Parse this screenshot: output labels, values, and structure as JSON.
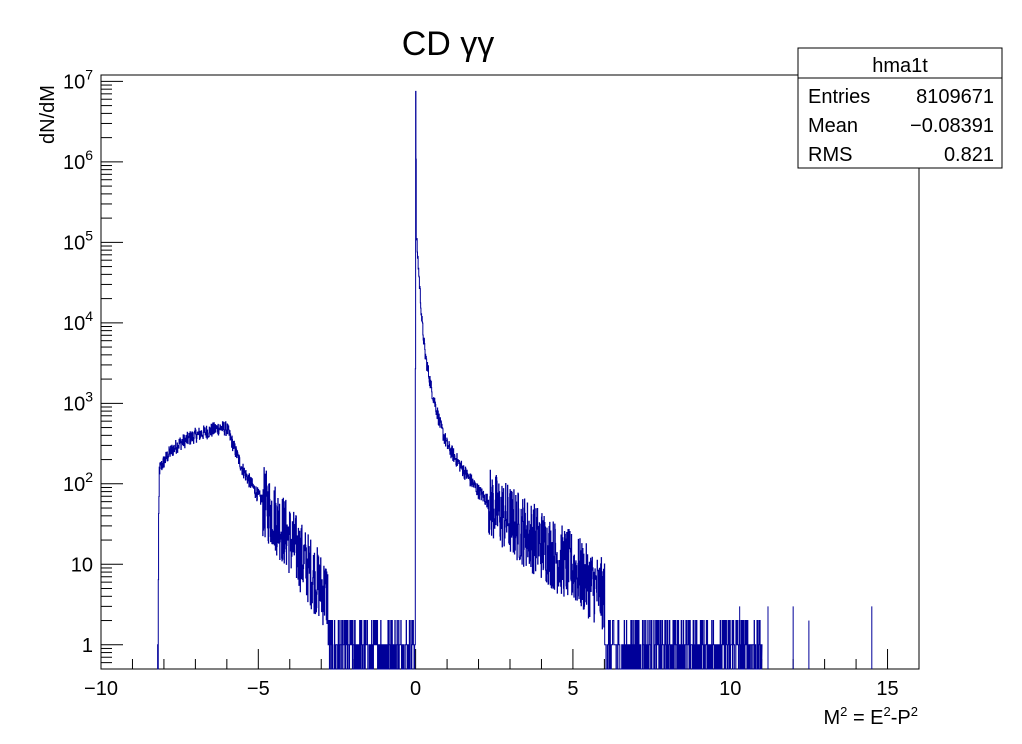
{
  "chart_data": {
    "type": "histogram",
    "title": "CD γγ",
    "xlabel": "M² = E²-P²",
    "ylabel": "dN/dM",
    "xlim": [
      -10,
      16
    ],
    "ylim": [
      0.5,
      12000000
    ],
    "y_scale": "log",
    "grid": false,
    "line_color": "#000099",
    "x_tick_labels": [
      "−10",
      "−5",
      "0",
      "5",
      "10",
      "15"
    ],
    "x_tick_values": [
      -10,
      -5,
      0,
      5,
      10,
      15
    ],
    "y_tick_values": [
      1,
      10,
      100,
      1000,
      10000,
      100000,
      1000000,
      10000000
    ],
    "y_tick_labels": [
      {
        "base": "1",
        "exp": ""
      },
      {
        "base": "10",
        "exp": ""
      },
      {
        "base": "10",
        "exp": "2"
      },
      {
        "base": "10",
        "exp": "3"
      },
      {
        "base": "10",
        "exp": "4"
      },
      {
        "base": "10",
        "exp": "5"
      },
      {
        "base": "10",
        "exp": "6"
      },
      {
        "base": "10",
        "exp": "7"
      }
    ],
    "series": [
      {
        "points": [
          [
            -8.2,
            0.5
          ],
          [
            -8.15,
            150
          ],
          [
            -8.0,
            190
          ],
          [
            -7.8,
            250
          ],
          [
            -7.5,
            320
          ],
          [
            -7.0,
            400
          ],
          [
            -6.5,
            460
          ],
          [
            -6.2,
            500
          ],
          [
            -6.0,
            480
          ],
          [
            -5.8,
            300
          ],
          [
            -5.5,
            150
          ],
          [
            -5.0,
            70
          ],
          [
            -4.5,
            40
          ],
          [
            -4.0,
            20
          ],
          [
            -3.5,
            10
          ],
          [
            -3.0,
            5
          ],
          [
            -2.5,
            3
          ],
          [
            -2.0,
            2
          ],
          [
            -1.5,
            1.5
          ],
          [
            -1.0,
            1.5
          ],
          [
            -0.5,
            1.5
          ],
          [
            -0.02,
            1.5
          ],
          [
            0.0,
            7000000
          ],
          [
            0.02,
            120000
          ],
          [
            0.1,
            40000
          ],
          [
            0.2,
            10000
          ],
          [
            0.3,
            4000
          ],
          [
            0.5,
            1500
          ],
          [
            0.8,
            500
          ],
          [
            1.0,
            300
          ],
          [
            1.5,
            150
          ],
          [
            2.0,
            80
          ],
          [
            2.5,
            50
          ],
          [
            3.0,
            35
          ],
          [
            3.5,
            25
          ],
          [
            4.0,
            18
          ],
          [
            4.5,
            12
          ],
          [
            5.0,
            9
          ],
          [
            5.5,
            6
          ],
          [
            6.0,
            4
          ],
          [
            6.5,
            3
          ],
          [
            7.0,
            2
          ],
          [
            7.5,
            1.5
          ],
          [
            8.0,
            1.2
          ],
          [
            8.5,
            1
          ],
          [
            9.0,
            1
          ],
          [
            9.5,
            1
          ],
          [
            10.0,
            1
          ],
          [
            10.5,
            1
          ],
          [
            11.0,
            0.7
          ]
        ]
      }
    ],
    "isolated_spikes": [
      {
        "x": 10.3,
        "y": 3
      },
      {
        "x": 11.2,
        "y": 3
      },
      {
        "x": 12.0,
        "y": 3
      },
      {
        "x": 12.5,
        "y": 2
      },
      {
        "x": 14.5,
        "y": 3
      }
    ],
    "stats_box": {
      "title": "hma1t",
      "rows": [
        {
          "label": "Entries",
          "value": "8109671"
        },
        {
          "label": "Mean",
          "value": "−0.08391"
        },
        {
          "label": "RMS",
          "value": "0.821"
        }
      ],
      "placement": "top-right"
    }
  }
}
